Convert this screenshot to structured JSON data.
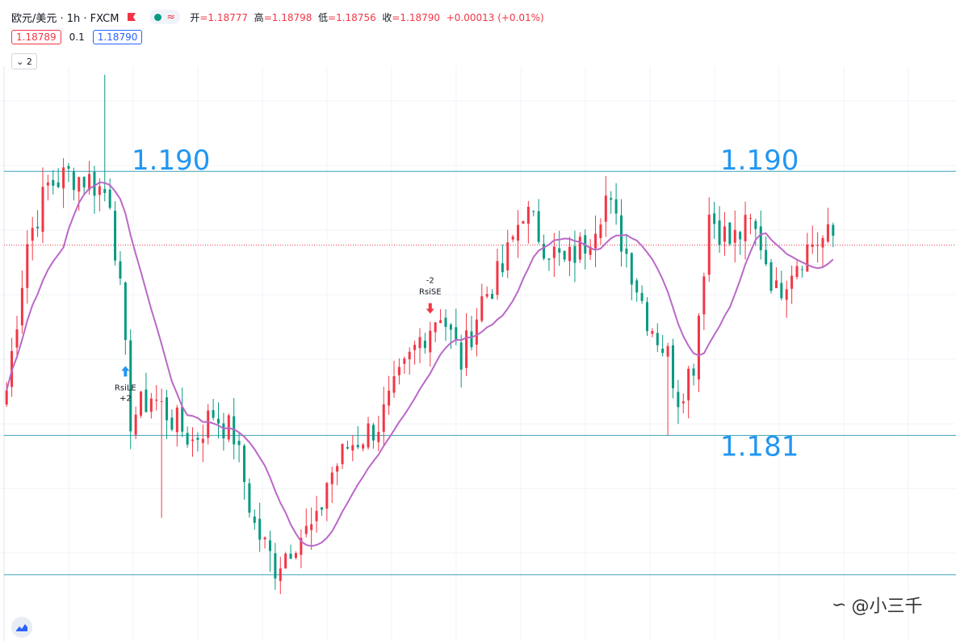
{
  "header": {
    "symbol": "欧元/美元 · 1h · FXCM",
    "indicator_icon": "wave-icon",
    "ohlc": [
      {
        "k": "开",
        "v": "=1.18777"
      },
      {
        "k": "高",
        "v": "=1.18798"
      },
      {
        "k": "低",
        "v": "=1.18756"
      },
      {
        "k": "收",
        "v": "=1.18790"
      }
    ],
    "change": "+0.00013 (+0.01%)"
  },
  "quote": {
    "bid": "1.18789",
    "spread": "0.1",
    "ask": "1.18790"
  },
  "collapse_label": "2",
  "watermark": "@小三千",
  "colors": {
    "up": "#f23645",
    "down": "#089981",
    "ma": "#ba68c8",
    "hline": "#3aa0b8",
    "label": "#2196f3",
    "arrow_up": "#2196f3",
    "arrow_down": "#f23645"
  },
  "chart_data": {
    "type": "candlestick",
    "ylim": [
      1.1755,
      1.1942
    ],
    "current_price": 1.1879,
    "levels": [
      {
        "price": 1.1905,
        "label": "1.190"
      },
      {
        "price": 1.1905,
        "label": "1.190"
      },
      {
        "price": 1.1812,
        "label": "1.181"
      },
      {
        "price": 1.1763,
        "label": ""
      }
    ],
    "signals": [
      {
        "type": "long",
        "bar": 23,
        "text1": "RsiLE",
        "text2": "+2"
      },
      {
        "type": "short",
        "bar": 82,
        "text1": "-2",
        "text2": "RsiSE"
      }
    ],
    "anchors": [
      [
        0,
        1.1828
      ],
      [
        4,
        1.188
      ],
      [
        8,
        1.19
      ],
      [
        12,
        1.1904
      ],
      [
        16,
        1.1902
      ],
      [
        20,
        1.1896
      ],
      [
        22,
        1.1862
      ],
      [
        24,
        1.1818
      ],
      [
        28,
        1.1826
      ],
      [
        32,
        1.1818
      ],
      [
        36,
        1.181
      ],
      [
        40,
        1.182
      ],
      [
        44,
        1.1812
      ],
      [
        48,
        1.178
      ],
      [
        52,
        1.1766
      ],
      [
        56,
        1.1776
      ],
      [
        60,
        1.178
      ],
      [
        62,
        1.1796
      ],
      [
        66,
        1.1808
      ],
      [
        72,
        1.1816
      ],
      [
        80,
        1.1846
      ],
      [
        84,
        1.1856
      ],
      [
        88,
        1.1838
      ],
      [
        92,
        1.186
      ],
      [
        96,
        1.187
      ],
      [
        100,
        1.1892
      ],
      [
        104,
        1.188
      ],
      [
        108,
        1.1872
      ],
      [
        112,
        1.188
      ],
      [
        116,
        1.1896
      ],
      [
        120,
        1.1876
      ],
      [
        124,
        1.1854
      ],
      [
        128,
        1.184
      ],
      [
        130,
        1.1826
      ],
      [
        133,
        1.1838
      ],
      [
        136,
        1.189
      ],
      [
        140,
        1.188
      ],
      [
        144,
        1.1886
      ],
      [
        146,
        1.188
      ],
      [
        149,
        1.1862
      ],
      [
        152,
        1.1872
      ],
      [
        156,
        1.188
      ],
      [
        160,
        1.1882
      ]
    ]
  }
}
